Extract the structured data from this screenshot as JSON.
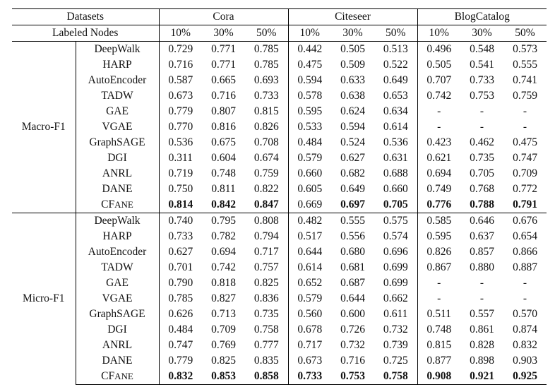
{
  "header": {
    "datasets_label": "Datasets",
    "labeled_nodes_label": "Labeled Nodes",
    "datasets": [
      "Cora",
      "Citeseer",
      "BlogCatalog"
    ],
    "ratios": [
      "10%",
      "30%",
      "50%"
    ]
  },
  "groups": [
    {
      "metric": "Macro-F1",
      "rows": [
        {
          "method": "DeepWalk",
          "values": [
            "0.729",
            "0.771",
            "0.785",
            "0.442",
            "0.505",
            "0.513",
            "0.496",
            "0.548",
            "0.573"
          ]
        },
        {
          "method": "HARP",
          "values": [
            "0.716",
            "0.771",
            "0.785",
            "0.475",
            "0.509",
            "0.522",
            "0.505",
            "0.541",
            "0.555"
          ]
        },
        {
          "method": "AutoEncoder",
          "values": [
            "0.587",
            "0.665",
            "0.693",
            "0.594",
            "0.633",
            "0.649",
            "0.707",
            "0.733",
            "0.741"
          ]
        },
        {
          "method": "TADW",
          "values": [
            "0.673",
            "0.716",
            "0.733",
            "0.578",
            "0.638",
            "0.653",
            "0.742",
            "0.753",
            "0.759"
          ]
        },
        {
          "method": "GAE",
          "values": [
            "0.779",
            "0.807",
            "0.815",
            "0.595",
            "0.624",
            "0.634",
            "-",
            "-",
            "-"
          ]
        },
        {
          "method": "VGAE",
          "values": [
            "0.770",
            "0.816",
            "0.826",
            "0.533",
            "0.594",
            "0.614",
            "-",
            "-",
            "-"
          ]
        },
        {
          "method": "GraphSAGE",
          "values": [
            "0.536",
            "0.675",
            "0.708",
            "0.484",
            "0.524",
            "0.536",
            "0.423",
            "0.462",
            "0.475"
          ]
        },
        {
          "method": "DGI",
          "values": [
            "0.311",
            "0.604",
            "0.674",
            "0.579",
            "0.627",
            "0.631",
            "0.621",
            "0.735",
            "0.747"
          ]
        },
        {
          "method": "ANRL",
          "values": [
            "0.719",
            "0.748",
            "0.759",
            "0.660",
            "0.682",
            "0.688",
            "0.694",
            "0.705",
            "0.709"
          ]
        },
        {
          "method": "DANE",
          "values": [
            "0.750",
            "0.811",
            "0.822",
            "0.605",
            "0.649",
            "0.660",
            "0.749",
            "0.768",
            "0.772"
          ]
        },
        {
          "method_prefix": "CF",
          "method_suffix": "ane",
          "values": [
            "0.814",
            "0.842",
            "0.847",
            "0.669",
            "0.697",
            "0.705",
            "0.776",
            "0.788",
            "0.791"
          ],
          "bold": [
            true,
            true,
            true,
            false,
            true,
            true,
            true,
            true,
            true
          ]
        }
      ]
    },
    {
      "metric": "Micro-F1",
      "rows": [
        {
          "method": "DeepWalk",
          "values": [
            "0.740",
            "0.795",
            "0.808",
            "0.482",
            "0.555",
            "0.575",
            "0.585",
            "0.646",
            "0.676"
          ]
        },
        {
          "method": "HARP",
          "values": [
            "0.733",
            "0.782",
            "0.794",
            "0.517",
            "0.556",
            "0.574",
            "0.595",
            "0.637",
            "0.654"
          ]
        },
        {
          "method": "AutoEncoder",
          "values": [
            "0.627",
            "0.694",
            "0.717",
            "0.644",
            "0.680",
            "0.696",
            "0.826",
            "0.857",
            "0.866"
          ]
        },
        {
          "method": "TADW",
          "values": [
            "0.701",
            "0.742",
            "0.757",
            "0.614",
            "0.681",
            "0.699",
            "0.867",
            "0.880",
            "0.887"
          ]
        },
        {
          "method": "GAE",
          "values": [
            "0.790",
            "0.818",
            "0.825",
            "0.652",
            "0.687",
            "0.699",
            "-",
            "-",
            "-"
          ]
        },
        {
          "method": "VGAE",
          "values": [
            "0.785",
            "0.827",
            "0.836",
            "0.579",
            "0.644",
            "0.662",
            "-",
            "-",
            "-"
          ]
        },
        {
          "method": "GraphSAGE",
          "values": [
            "0.626",
            "0.713",
            "0.735",
            "0.560",
            "0.600",
            "0.611",
            "0.511",
            "0.557",
            "0.570"
          ]
        },
        {
          "method": "DGI",
          "values": [
            "0.484",
            "0.709",
            "0.758",
            "0.678",
            "0.726",
            "0.732",
            "0.748",
            "0.861",
            "0.874"
          ]
        },
        {
          "method": "ANRL",
          "values": [
            "0.747",
            "0.769",
            "0.777",
            "0.717",
            "0.732",
            "0.739",
            "0.815",
            "0.828",
            "0.832"
          ]
        },
        {
          "method": "DANE",
          "values": [
            "0.779",
            "0.825",
            "0.835",
            "0.673",
            "0.716",
            "0.725",
            "0.877",
            "0.898",
            "0.903"
          ]
        },
        {
          "method_prefix": "CF",
          "method_suffix": "ane",
          "values": [
            "0.832",
            "0.853",
            "0.858",
            "0.733",
            "0.753",
            "0.758",
            "0.908",
            "0.921",
            "0.925"
          ],
          "bold": [
            true,
            true,
            true,
            true,
            true,
            true,
            true,
            true,
            true
          ]
        }
      ]
    }
  ]
}
